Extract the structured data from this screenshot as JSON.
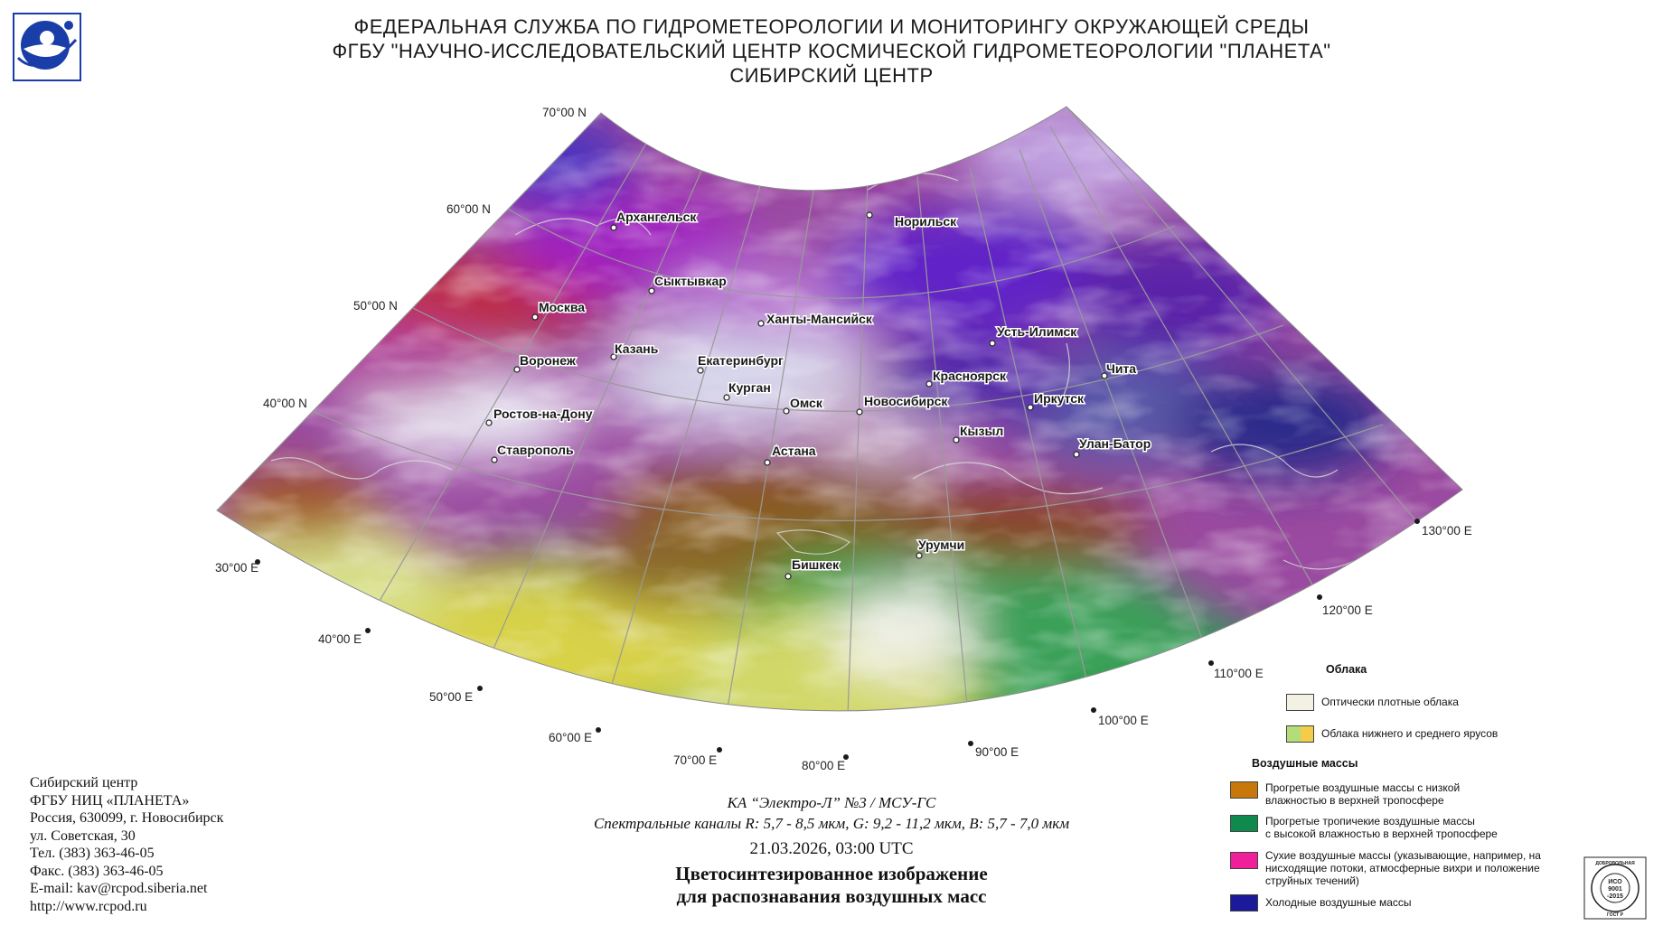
{
  "header": {
    "line1": "ФЕДЕРАЛЬНАЯ СЛУЖБА ПО ГИДРОМЕТЕОРОЛОГИИ И МОНИТОРИНГУ ОКРУЖАЮЩЕЙ СРЕДЫ",
    "line2": "ФГБУ \"НАУЧНО-ИССЛЕДОВАТЕЛЬСКИЙ ЦЕНТР КОСМИЧЕСКОЙ ГИДРОМЕТЕОРОЛОГИИ \"ПЛАНЕТА\"",
    "line3": "СИБИРСКИЙ ЦЕНТР"
  },
  "map": {
    "latitude_labels": [
      "70°00 N",
      "60°00 N",
      "50°00 N",
      "40°00 N"
    ],
    "longitude_labels": [
      "30°00 E",
      "40°00 E",
      "50°00 E",
      "60°00 E",
      "70°00 E",
      "80°00 E",
      "90°00 E",
      "100°00 E",
      "110°00 E",
      "120°00 E",
      "130°00 E"
    ],
    "cities": [
      "Архангельск",
      "Норильск",
      "Сыктывкар",
      "Москва",
      "Ханты-Мансийск",
      "Усть-Илимск",
      "Казань",
      "Воронеж",
      "Екатеринбург",
      "Красноярск",
      "Чита",
      "Курган",
      "Омск",
      "Новосибирск",
      "Иркутск",
      "Ростов-на-Дону",
      "Кызыл",
      "Улан-Батор",
      "Ставрополь",
      "Астана",
      "Урумчи",
      "Бишкек"
    ]
  },
  "contacts": {
    "line1": "Сибирский центр",
    "line2": "ФГБУ НИЦ «ПЛАНЕТА»",
    "line3": "Россия, 630099, г. Новосибирск",
    "line4": "ул. Советская, 30",
    "line5": "Тел. (383) 363-46-05",
    "line6": "Факс. (383) 363-46-05",
    "line7": "E-mail: kav@rcpod.siberia.net",
    "line8": "http://www.rcpod.ru"
  },
  "caption": {
    "satellite": "КА “Электро-Л” №3 / МСУ-ГС",
    "channels": "Спектральные каналы R: 5,7 - 8,5 мкм, G: 9,2 - 11,2 мкм, B: 5,7 - 7,0 мкм",
    "datetime": "21.03.2026, 03:00 UTC",
    "title_line1": "Цветосинтезированное изображение",
    "title_line2": "для распознавания воздушных масс"
  },
  "legend": {
    "clouds_heading": "Облака",
    "clouds": [
      {
        "label": "Оптически плотные облака",
        "colors": [
          "#f3f1e4"
        ]
      },
      {
        "label": "Облака нижнего и среднего ярусов",
        "colors": [
          "#b4dc78",
          "#f2cc4a"
        ]
      }
    ],
    "airmass_heading": "Воздушные массы",
    "airmasses": [
      {
        "label_1": "Прогретые воздушные массы с низкой",
        "label_2": "влажностью в верхней тропосфере",
        "label_3": "",
        "color": "#c8780a"
      },
      {
        "label_1": "Прогретые тропичекие воздушные массы",
        "label_2": "с высокой влажностью в верхней тропосфере",
        "label_3": "",
        "color": "#0e8a4e"
      },
      {
        "label_1": "Сухие воздушные массы (указывающие, например, на",
        "label_2": "нисходящие потоки, атмосферные вихри и положение",
        "label_3": "струйных течений)",
        "color": "#f0209a"
      },
      {
        "label_1": "Холодные воздушные массы",
        "label_2": "",
        "label_3": "",
        "color": "#1a1a9a"
      }
    ]
  },
  "iso_badge": {
    "arc_text": "ДОБРОВОЛЬНАЯ",
    "line1": "ИСО",
    "line2": "9001",
    "line3": "-2015",
    "bottom": "ГОСТ Р"
  }
}
